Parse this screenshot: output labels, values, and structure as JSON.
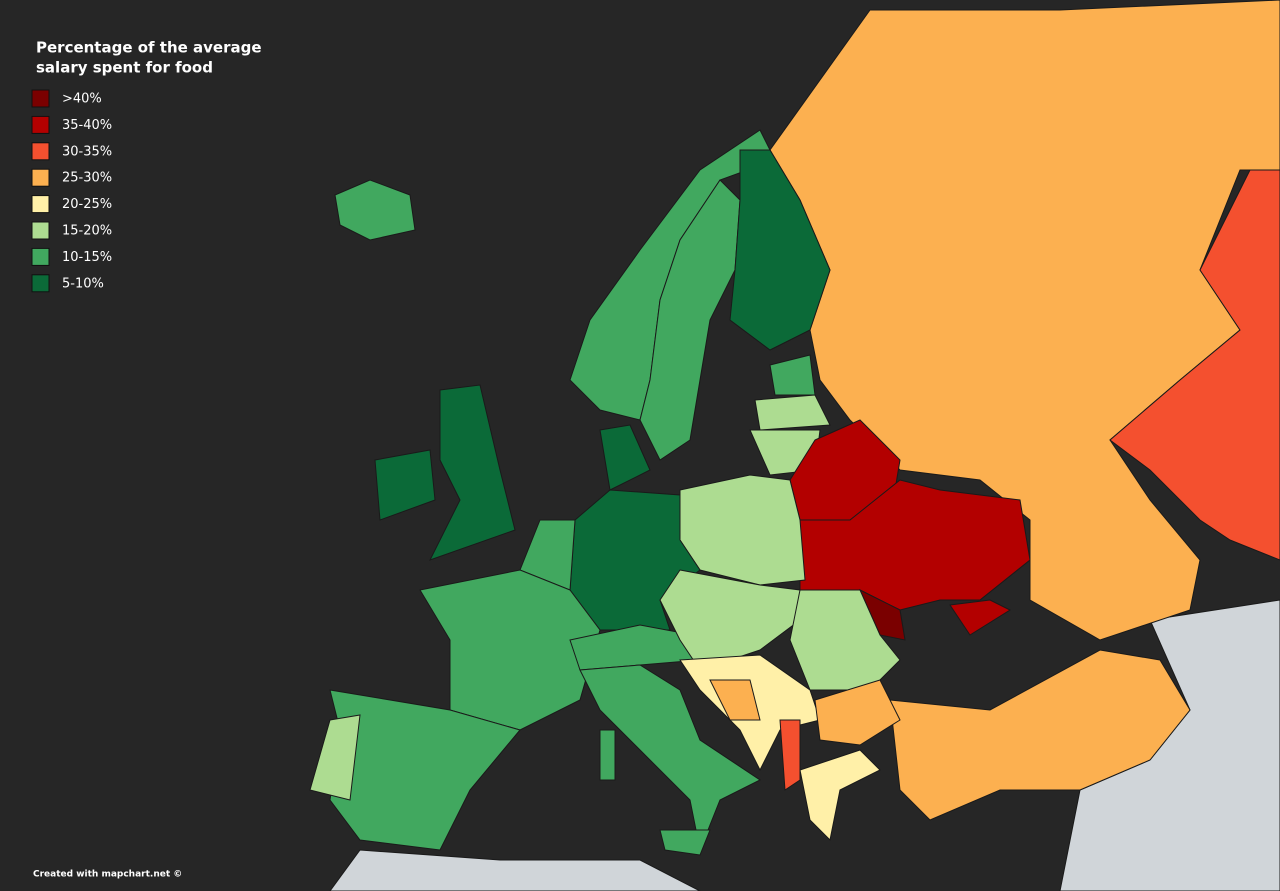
{
  "legend": {
    "title": [
      "Percentage of the average",
      "salary spent for food"
    ],
    "items": [
      {
        "label": ">40%",
        "color": "#7a0000"
      },
      {
        "label": "35-40%",
        "color": "#b30000"
      },
      {
        "label": "30-35%",
        "color": "#f4502f"
      },
      {
        "label": "25-30%",
        "color": "#fcb050"
      },
      {
        "label": "20-25%",
        "color": "#fff0a8"
      },
      {
        "label": "15-20%",
        "color": "#addc91"
      },
      {
        "label": "10-15%",
        "color": "#41a85f"
      },
      {
        "label": "5-10%",
        "color": "#0b6a38"
      }
    ]
  },
  "footer": "Created with mapchart.net ©"
}
